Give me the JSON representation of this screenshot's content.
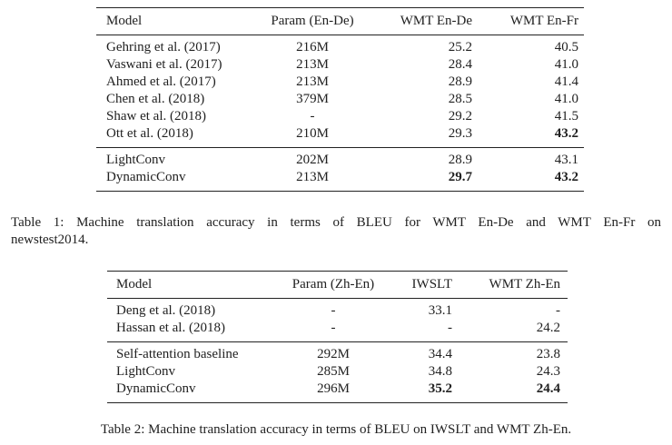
{
  "page": {
    "background_color": "#ffffff",
    "text_color": "#212121",
    "rule_color": "#222222"
  },
  "tables": [
    {
      "name": "table-1",
      "columns": [
        {
          "label": "Model",
          "align": "left"
        },
        {
          "label": "Param (En-De)",
          "align": "center"
        },
        {
          "label": "WMT En-De",
          "align": "right"
        },
        {
          "label": "WMT En-Fr",
          "align": "right"
        }
      ],
      "groups": [
        {
          "rows": [
            {
              "cells": [
                "Gehring et al. (2017)",
                "216M",
                "25.2",
                "40.5"
              ],
              "bold_cols": []
            },
            {
              "cells": [
                "Vaswani et al. (2017)",
                "213M",
                "28.4",
                "41.0"
              ],
              "bold_cols": []
            },
            {
              "cells": [
                "Ahmed et al. (2017)",
                "213M",
                "28.9",
                "41.4"
              ],
              "bold_cols": []
            },
            {
              "cells": [
                "Chen et al. (2018)",
                "379M",
                "28.5",
                "41.0"
              ],
              "bold_cols": []
            },
            {
              "cells": [
                "Shaw et al. (2018)",
                "-",
                "29.2",
                "41.5"
              ],
              "bold_cols": []
            },
            {
              "cells": [
                "Ott et al. (2018)",
                "210M",
                "29.3",
                "43.2"
              ],
              "bold_cols": [
                3
              ]
            }
          ]
        },
        {
          "rows": [
            {
              "cells": [
                "LightConv",
                "202M",
                "28.9",
                "43.1"
              ],
              "bold_cols": []
            },
            {
              "cells": [
                "DynamicConv",
                "213M",
                "29.7",
                "43.2"
              ],
              "bold_cols": [
                2,
                3
              ]
            }
          ]
        }
      ],
      "caption_lines": [
        "Table 1: Machine translation accuracy in terms of BLEU for WMT En-De and WMT En-Fr on",
        "newstest2014."
      ]
    },
    {
      "name": "table-2",
      "columns": [
        {
          "label": "Model",
          "align": "left"
        },
        {
          "label": "Param (Zh-En)",
          "align": "center"
        },
        {
          "label": "IWSLT",
          "align": "right"
        },
        {
          "label": "WMT Zh-En",
          "align": "right"
        }
      ],
      "groups": [
        {
          "rows": [
            {
              "cells": [
                "Deng et al. (2018)",
                "-",
                "33.1",
                "-"
              ],
              "bold_cols": []
            },
            {
              "cells": [
                "Hassan et al. (2018)",
                "-",
                "-",
                "24.2"
              ],
              "bold_cols": []
            }
          ]
        },
        {
          "rows": [
            {
              "cells": [
                "Self-attention baseline",
                "292M",
                "34.4",
                "23.8"
              ],
              "bold_cols": []
            },
            {
              "cells": [
                "LightConv",
                "285M",
                "34.8",
                "24.3"
              ],
              "bold_cols": []
            },
            {
              "cells": [
                "DynamicConv",
                "296M",
                "35.2",
                "24.4"
              ],
              "bold_cols": [
                2,
                3
              ]
            }
          ]
        }
      ],
      "caption_lines": [
        "Table 2: Machine translation accuracy in terms of BLEU on IWSLT and WMT Zh-En."
      ]
    }
  ]
}
